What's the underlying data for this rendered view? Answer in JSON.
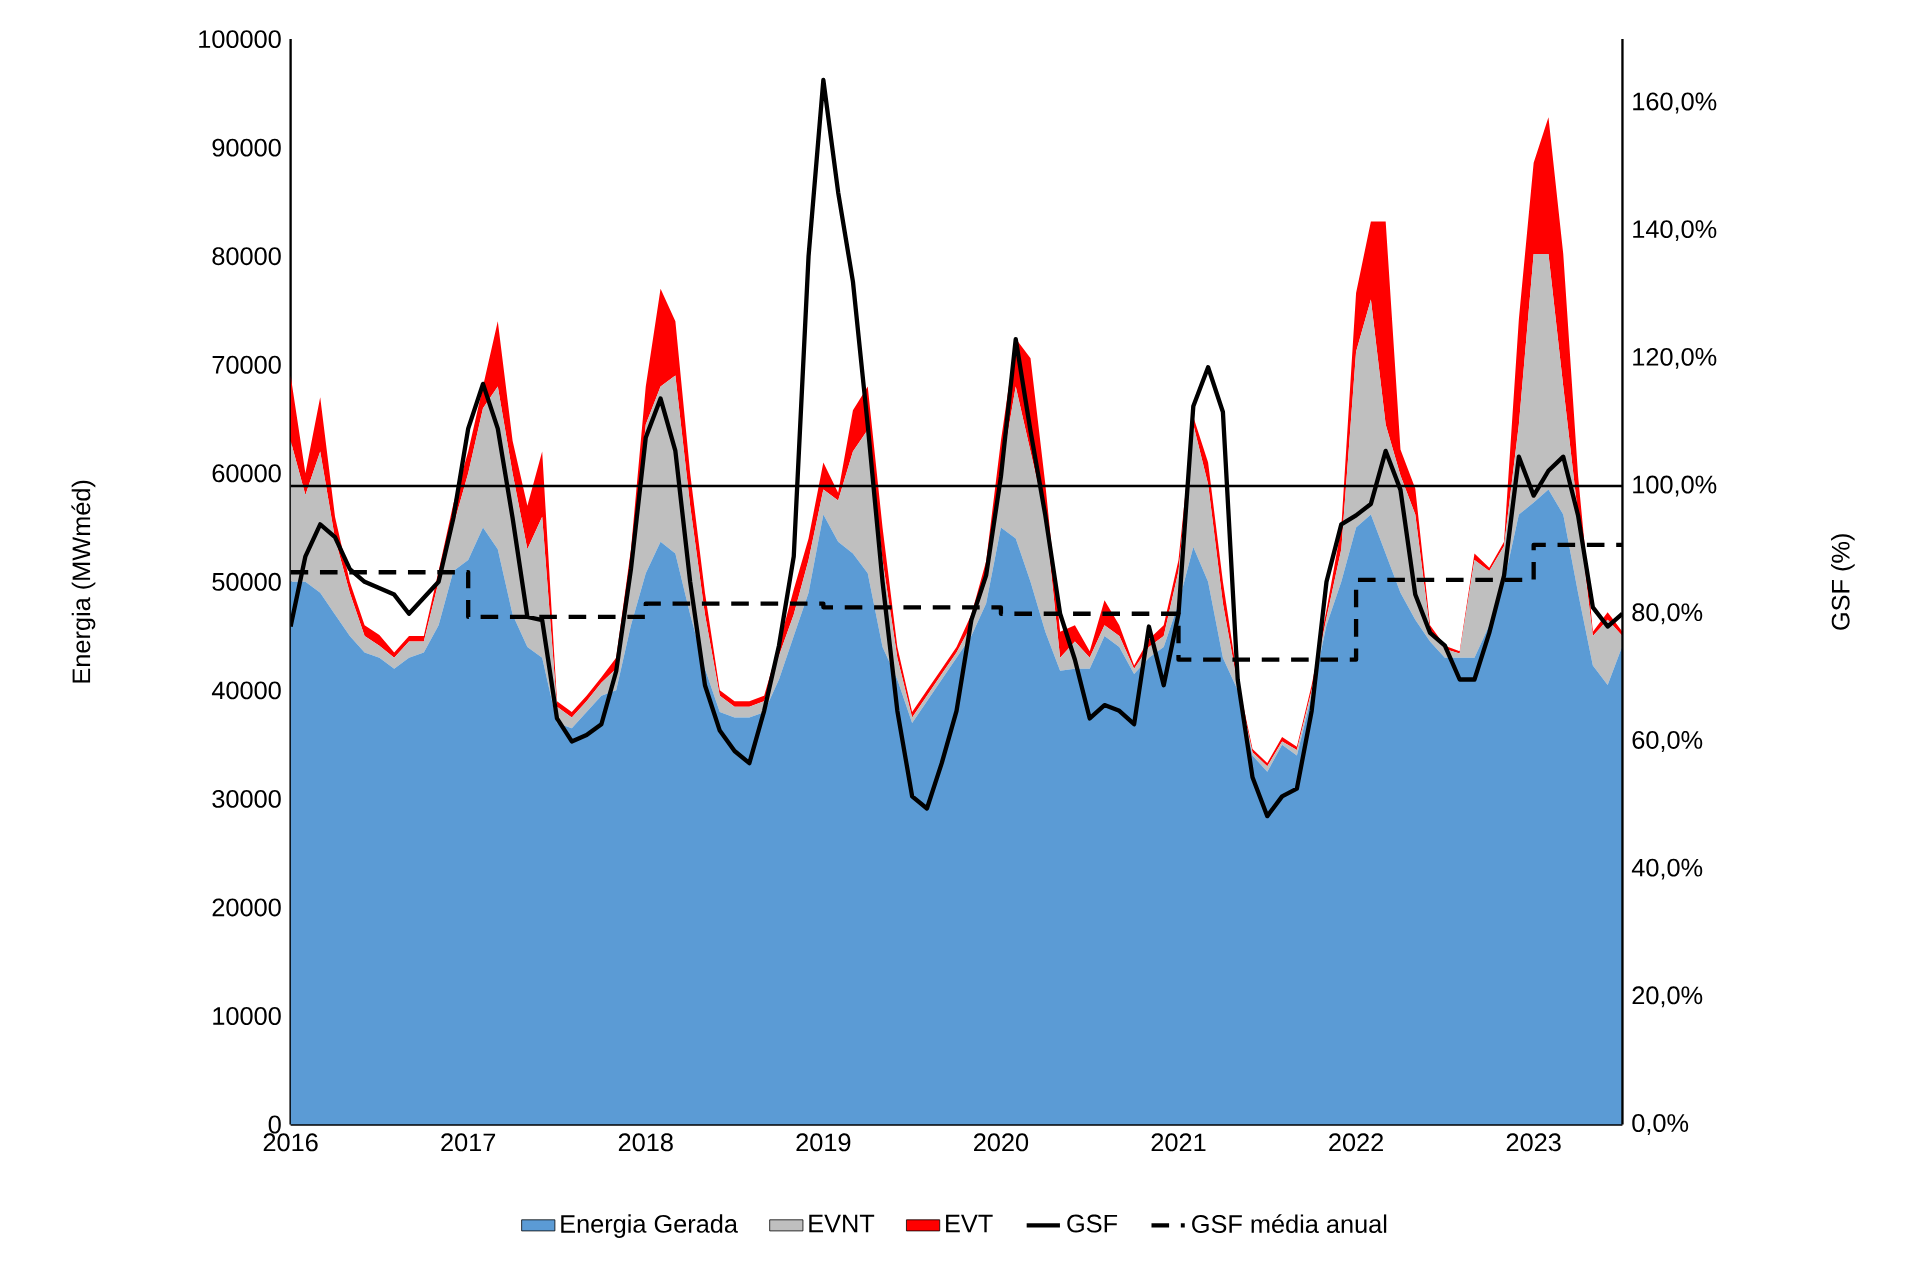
{
  "chart_data": {
    "type": "area",
    "stacked": true,
    "ylabel": "Energia (MWméd)",
    "y2label": "GSF (%)",
    "x": [
      "2016-01",
      "2016-02",
      "2016-03",
      "2016-04",
      "2016-05",
      "2016-06",
      "2016-07",
      "2016-08",
      "2016-09",
      "2016-10",
      "2016-11",
      "2016-12",
      "2017-01",
      "2017-02",
      "2017-03",
      "2017-04",
      "2017-05",
      "2017-06",
      "2017-07",
      "2017-08",
      "2017-09",
      "2017-10",
      "2017-11",
      "2017-12",
      "2018-01",
      "2018-02",
      "2018-03",
      "2018-04",
      "2018-05",
      "2018-06",
      "2018-07",
      "2018-08",
      "2018-09",
      "2018-10",
      "2018-11",
      "2018-12",
      "2019-01",
      "2019-02",
      "2019-03",
      "2019-04",
      "2019-05",
      "2019-06",
      "2019-07",
      "2019-08",
      "2019-09",
      "2019-10",
      "2019-11",
      "2019-12",
      "2020-01",
      "2020-02",
      "2020-03",
      "2020-04",
      "2020-05",
      "2020-06",
      "2020-07",
      "2020-08",
      "2020-09",
      "2020-10",
      "2020-11",
      "2020-12",
      "2021-01",
      "2021-02",
      "2021-03",
      "2021-04",
      "2021-05",
      "2021-06",
      "2021-07",
      "2021-08",
      "2021-09",
      "2021-10",
      "2021-11",
      "2021-12",
      "2022-01",
      "2022-02",
      "2022-03",
      "2022-04",
      "2022-05",
      "2022-06",
      "2022-07",
      "2022-08",
      "2022-09",
      "2022-10",
      "2022-11",
      "2022-12",
      "2023-01",
      "2023-02",
      "2023-03",
      "2023-04",
      "2023-05",
      "2023-06",
      "2023-07"
    ],
    "xlim": [
      "2016-01",
      "2023-07"
    ],
    "xticks": [
      "2016",
      "2017",
      "2018",
      "2019",
      "2020",
      "2021",
      "2022",
      "2023"
    ],
    "ylim": [
      0,
      100000
    ],
    "yticks": [
      0,
      10000,
      20000,
      30000,
      40000,
      50000,
      60000,
      70000,
      80000,
      90000,
      100000
    ],
    "y2lim": [
      0,
      170
    ],
    "y2ticks": [
      {
        "value": 0,
        "label": "0,0%"
      },
      {
        "value": 20,
        "label": "20,0%"
      },
      {
        "value": 40,
        "label": "40,0%"
      },
      {
        "value": 60,
        "label": "60,0%"
      },
      {
        "value": 80,
        "label": "80,0%"
      },
      {
        "value": 100,
        "label": "100,0%"
      },
      {
        "value": 120,
        "label": "120,0%"
      },
      {
        "value": 140,
        "label": "140,0%"
      },
      {
        "value": 160,
        "label": "160,0%"
      }
    ],
    "legend": "bottom",
    "ref_lines": [
      {
        "axis": "y2",
        "value": 100,
        "color": "#000000"
      }
    ],
    "series": [
      {
        "name": "Energia Gerada",
        "color": "#5b9bd5",
        "values": [
          50000,
          50000,
          49000,
          47000,
          45000,
          43500,
          43000,
          42000,
          43000,
          43500,
          46000,
          51000,
          52000,
          55000,
          53000,
          47000,
          44000,
          43000,
          37000,
          36500,
          38000,
          39500,
          40000,
          46000,
          50800,
          53700,
          52600,
          47000,
          42000,
          38000,
          37500,
          37500,
          38000,
          41000,
          45000,
          49000,
          56200,
          53700,
          52600,
          50800,
          44000,
          41000,
          37000,
          39000,
          41000,
          43000,
          45000,
          48000,
          55000,
          54000,
          50000,
          45400,
          41800,
          42000,
          42000,
          45000,
          44000,
          41500,
          43000,
          44000,
          48000,
          53200,
          50000,
          43000,
          40000,
          34000,
          32500,
          35000,
          34000,
          39500,
          46000,
          50000,
          55000,
          56200,
          52600,
          49000,
          46500,
          44500,
          43000,
          43000,
          43000,
          46000,
          50000,
          56200,
          57300,
          58500,
          56200,
          49000,
          42300,
          40500,
          44100
        ]
      },
      {
        "name": "EVNT",
        "color": "#bfbfbf",
        "values": [
          13000,
          8000,
          13000,
          7000,
          4000,
          1500,
          1100,
          1000,
          1500,
          1000,
          4000,
          4200,
          8000,
          11000,
          15000,
          13000,
          9000,
          13000,
          1500,
          1000,
          1000,
          1200,
          2000,
          5000,
          13700,
          14300,
          16400,
          10000,
          5000,
          1500,
          1000,
          1000,
          1000,
          2200,
          2000,
          3000,
          2300,
          3800,
          9400,
          13200,
          8000,
          2000,
          500,
          500,
          500,
          500,
          1000,
          2000,
          5000,
          14000,
          12000,
          10600,
          1200,
          2500,
          1000,
          1000,
          1000,
          500,
          1000,
          1000,
          3000,
          11300,
          9000,
          5000,
          500,
          300,
          500,
          300,
          500,
          500,
          700,
          3000,
          16200,
          19800,
          11900,
          10800,
          9700,
          1000,
          800,
          400,
          9000,
          5000,
          3300,
          8300,
          22900,
          21700,
          11800,
          7200,
          2700,
          6000,
          900
        ]
      },
      {
        "name": "EVT",
        "color": "#ff0000",
        "values": [
          6000,
          2000,
          5000,
          2000,
          1000,
          1000,
          1000,
          500,
          500,
          500,
          1000,
          2000,
          2000,
          2000,
          6000,
          3000,
          4000,
          6000,
          500,
          500,
          500,
          500,
          1000,
          2000,
          3500,
          9000,
          5000,
          3000,
          2000,
          500,
          500,
          500,
          500,
          1000,
          2300,
          2000,
          2500,
          700,
          3800,
          4000,
          3000,
          1000,
          500,
          500,
          500,
          500,
          1000,
          1900,
          3000,
          4400,
          8600,
          3000,
          2400,
          1500,
          600,
          2300,
          1000,
          300,
          700,
          1000,
          1000,
          700,
          2000,
          2000,
          500,
          300,
          300,
          400,
          300,
          500,
          700,
          2000,
          5400,
          7200,
          18700,
          2400,
          2400,
          500,
          300,
          200,
          600,
          300,
          400,
          9700,
          8400,
          12600,
          12200,
          3600,
          400,
          700,
          400
        ]
      },
      {
        "name": "GSF",
        "type": "line",
        "axis": "y2",
        "color": "#000000",
        "line_style": "solid",
        "values": [
          78,
          89,
          94,
          92,
          87,
          85,
          84,
          83,
          80,
          82.5,
          85,
          95,
          109,
          116,
          109,
          95,
          79.5,
          79,
          63.6,
          60,
          61,
          62.7,
          71,
          87,
          107.6,
          113.7,
          105.5,
          85,
          68.8,
          61.7,
          58.5,
          56.6,
          64.8,
          75,
          89,
          136,
          163.6,
          146,
          132,
          109.5,
          85,
          64.8,
          51.4,
          49.5,
          56.6,
          64.8,
          79,
          86,
          101.5,
          123,
          108.6,
          95.4,
          80,
          72.8,
          63.6,
          65.7,
          64.8,
          62.7,
          78,
          68.8,
          80,
          112.5,
          118.6,
          111.6,
          69.7,
          54.4,
          48.3,
          51.4,
          52.6,
          64.8,
          85,
          94,
          95.4,
          97.2,
          105.5,
          99.4,
          83,
          77,
          75,
          69.7,
          69.7,
          77,
          86,
          104.6,
          98.5,
          102.4,
          104.6,
          95.4,
          81,
          78,
          80
        ]
      },
      {
        "name": "GSF média anual",
        "type": "step",
        "axis": "y2",
        "color": "#000000",
        "line_style": "dashed",
        "x": [
          "2016-01",
          "2017-01",
          "2018-01",
          "2019-01",
          "2020-01",
          "2021-01",
          "2022-01",
          "2023-01",
          "2023-07"
        ],
        "values": [
          86.5,
          79.5,
          81.6,
          81,
          80,
          72.8,
          85.3,
          90.8,
          90.8
        ]
      }
    ]
  }
}
